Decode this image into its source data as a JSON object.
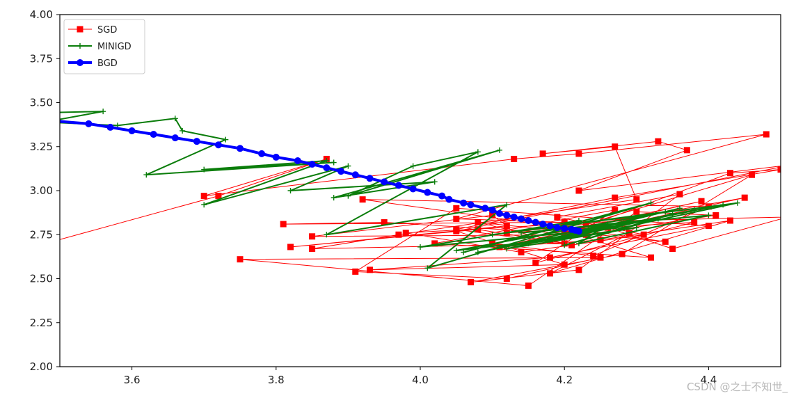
{
  "chart_data": {
    "type": "line",
    "title": "",
    "xlabel": "",
    "ylabel": "",
    "xlim": [
      3.5,
      4.5
    ],
    "ylim": [
      2.0,
      4.0
    ],
    "xticks": [
      "3.6",
      "3.8",
      "4.0",
      "4.2",
      "4.4"
    ],
    "yticks": [
      "2.00",
      "2.25",
      "2.50",
      "2.75",
      "3.00",
      "3.25",
      "3.50",
      "3.75",
      "4.00"
    ],
    "grid": false,
    "legend_position": "upper-left",
    "series": [
      {
        "name": "SGD",
        "color": "#ff0000",
        "marker": "square",
        "linewidth": 1,
        "points": [
          [
            3.4,
            2.61
          ],
          [
            3.72,
            2.97
          ],
          [
            3.87,
            3.18
          ],
          [
            3.7,
            2.97
          ],
          [
            4.13,
            3.18
          ],
          [
            4.22,
            3.21
          ],
          [
            4.48,
            3.32
          ],
          [
            4.05,
            2.84
          ],
          [
            4.2,
            2.82
          ],
          [
            3.81,
            2.81
          ],
          [
            3.95,
            2.82
          ],
          [
            4.23,
            2.75
          ],
          [
            3.85,
            2.74
          ],
          [
            4.1,
            2.86
          ],
          [
            4.12,
            2.8
          ],
          [
            3.82,
            2.68
          ],
          [
            4.08,
            2.78
          ],
          [
            4.2,
            2.7
          ],
          [
            3.85,
            2.67
          ],
          [
            3.97,
            2.75
          ],
          [
            4.3,
            2.95
          ],
          [
            4.27,
            3.25
          ],
          [
            4.17,
            3.21
          ],
          [
            4.33,
            3.28
          ],
          [
            4.37,
            3.23
          ],
          [
            4.22,
            3.0
          ],
          [
            4.52,
            3.15
          ],
          [
            4.05,
            2.77
          ],
          [
            4.2,
            2.58
          ],
          [
            3.93,
            2.55
          ],
          [
            4.18,
            2.62
          ],
          [
            4.4,
            2.8
          ],
          [
            4.05,
            2.9
          ],
          [
            3.91,
            2.54
          ],
          [
            4.12,
            2.5
          ],
          [
            4.25,
            2.62
          ],
          [
            3.75,
            2.61
          ],
          [
            4.15,
            2.46
          ],
          [
            4.3,
            2.88
          ],
          [
            4.41,
            2.86
          ],
          [
            4.18,
            2.72
          ],
          [
            4.43,
            3.1
          ],
          [
            4.5,
            3.12
          ],
          [
            4.27,
            2.96
          ],
          [
            4.05,
            2.78
          ],
          [
            4.21,
            2.69
          ],
          [
            4.08,
            2.82
          ],
          [
            4.34,
            2.71
          ],
          [
            3.92,
            2.95
          ],
          [
            4.4,
            2.91
          ],
          [
            4.24,
            2.63
          ],
          [
            4.1,
            2.7
          ],
          [
            4.45,
            2.96
          ],
          [
            4.26,
            2.79
          ],
          [
            4.35,
            2.67
          ],
          [
            4.51,
            2.85
          ],
          [
            4.29,
            2.83
          ],
          [
            3.98,
            2.76
          ],
          [
            4.14,
            2.65
          ],
          [
            4.31,
            2.75
          ],
          [
            4.19,
            2.85
          ],
          [
            4.36,
            2.98
          ],
          [
            4.22,
            2.55
          ],
          [
            4.07,
            2.48
          ],
          [
            4.28,
            2.64
          ],
          [
            4.46,
            3.09
          ],
          [
            4.23,
            2.81
          ],
          [
            4.12,
            2.76
          ],
          [
            4.38,
            2.82
          ],
          [
            4.16,
            2.59
          ],
          [
            4.27,
            2.89
          ],
          [
            4.02,
            2.7
          ],
          [
            4.32,
            2.62
          ],
          [
            4.2,
            2.77
          ],
          [
            4.39,
            2.94
          ],
          [
            4.11,
            2.68
          ],
          [
            4.25,
            2.72
          ],
          [
            4.43,
            2.83
          ],
          [
            4.18,
            2.53
          ],
          [
            4.29,
            2.76
          ]
        ]
      },
      {
        "name": "MINIGD",
        "color": "#0a7d0a",
        "marker": "plus",
        "linewidth": 2,
        "points": [
          [
            3.45,
            3.44
          ],
          [
            3.56,
            3.45
          ],
          [
            3.48,
            3.39
          ],
          [
            3.58,
            3.37
          ],
          [
            3.66,
            3.41
          ],
          [
            3.67,
            3.34
          ],
          [
            3.73,
            3.29
          ],
          [
            3.62,
            3.09
          ],
          [
            3.88,
            3.16
          ],
          [
            3.7,
            3.12
          ],
          [
            3.87,
            3.17
          ],
          [
            3.7,
            2.92
          ],
          [
            3.9,
            3.14
          ],
          [
            3.82,
            3.0
          ],
          [
            4.02,
            3.05
          ],
          [
            3.88,
            2.96
          ],
          [
            4.11,
            3.23
          ],
          [
            3.9,
            2.97
          ],
          [
            3.99,
            3.14
          ],
          [
            4.08,
            3.22
          ],
          [
            3.87,
            2.75
          ],
          [
            4.12,
            2.92
          ],
          [
            4.01,
            2.56
          ],
          [
            4.32,
            2.93
          ],
          [
            4.06,
            2.65
          ],
          [
            4.22,
            2.83
          ],
          [
            4.0,
            2.68
          ],
          [
            4.28,
            2.79
          ],
          [
            4.44,
            2.93
          ],
          [
            4.1,
            2.75
          ],
          [
            4.34,
            2.88
          ],
          [
            4.05,
            2.66
          ],
          [
            4.2,
            2.73
          ],
          [
            4.38,
            2.89
          ],
          [
            4.15,
            2.7
          ],
          [
            4.3,
            2.79
          ],
          [
            4.12,
            2.67
          ],
          [
            4.36,
            2.9
          ],
          [
            4.18,
            2.72
          ],
          [
            4.42,
            2.92
          ],
          [
            4.08,
            2.65
          ],
          [
            4.26,
            2.81
          ],
          [
            4.22,
            2.7
          ],
          [
            4.4,
            2.86
          ],
          [
            4.14,
            2.76
          ],
          [
            4.33,
            2.84
          ],
          [
            4.2,
            2.69
          ],
          [
            4.35,
            2.87
          ]
        ]
      },
      {
        "name": "BGD",
        "color": "#0000ff",
        "marker": "circle",
        "linewidth": 4,
        "points": [
          [
            3.48,
            3.4
          ],
          [
            3.54,
            3.38
          ],
          [
            3.57,
            3.36
          ],
          [
            3.6,
            3.34
          ],
          [
            3.63,
            3.32
          ],
          [
            3.66,
            3.3
          ],
          [
            3.69,
            3.28
          ],
          [
            3.72,
            3.26
          ],
          [
            3.75,
            3.24
          ],
          [
            3.78,
            3.21
          ],
          [
            3.8,
            3.19
          ],
          [
            3.83,
            3.17
          ],
          [
            3.85,
            3.15
          ],
          [
            3.87,
            3.13
          ],
          [
            3.89,
            3.11
          ],
          [
            3.91,
            3.09
          ],
          [
            3.93,
            3.07
          ],
          [
            3.95,
            3.05
          ],
          [
            3.97,
            3.03
          ],
          [
            3.99,
            3.01
          ],
          [
            4.01,
            2.99
          ],
          [
            4.03,
            2.97
          ],
          [
            4.04,
            2.95
          ],
          [
            4.06,
            2.93
          ],
          [
            4.07,
            2.92
          ],
          [
            4.09,
            2.9
          ],
          [
            4.1,
            2.89
          ],
          [
            4.11,
            2.87
          ],
          [
            4.12,
            2.86
          ],
          [
            4.13,
            2.85
          ],
          [
            4.14,
            2.84
          ],
          [
            4.15,
            2.83
          ],
          [
            4.16,
            2.82
          ],
          [
            4.17,
            2.81
          ],
          [
            4.18,
            2.8
          ],
          [
            4.19,
            2.79
          ],
          [
            4.2,
            2.785
          ],
          [
            4.21,
            2.78
          ],
          [
            4.215,
            2.775
          ],
          [
            4.22,
            2.77
          ]
        ]
      }
    ]
  },
  "watermark": "CSDN @之士不知世_"
}
